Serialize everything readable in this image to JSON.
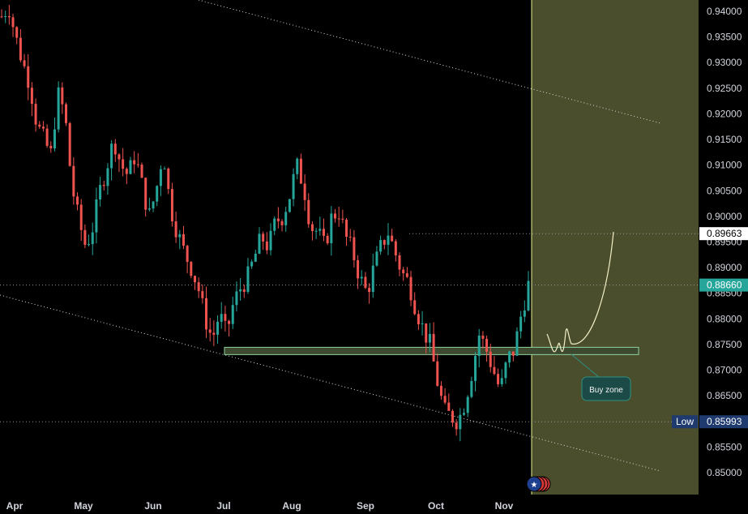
{
  "chart_data": {
    "type": "candlestick",
    "y_axis": {
      "ylim": [
        0.8465,
        0.9415
      ],
      "ticks": [
        "0.94000",
        "0.93500",
        "0.93000",
        "0.92500",
        "0.92000",
        "0.91500",
        "0.91000",
        "0.90500",
        "0.90000",
        "0.89500",
        "0.89000",
        "0.88500",
        "0.88000",
        "0.87500",
        "0.87000",
        "0.86500",
        "0.86000",
        "0.85500",
        "0.85000"
      ],
      "tick_values": [
        0.94,
        0.935,
        0.93,
        0.925,
        0.92,
        0.915,
        0.91,
        0.905,
        0.9,
        0.895,
        0.89,
        0.885,
        0.88,
        0.875,
        0.87,
        0.865,
        0.86,
        0.855,
        0.85
      ]
    },
    "x_axis": {
      "ticks": [
        "Apr",
        "May",
        "Jun",
        "Jul",
        "Aug",
        "Sep",
        "Oct",
        "Nov"
      ]
    },
    "price_labels": [
      {
        "value": 0.89663,
        "text": "0.89663",
        "style": "white"
      },
      {
        "value": 0.8866,
        "text": "0.88660",
        "style": "teal"
      },
      {
        "value": 0.85993,
        "text": "0.85993",
        "style": "navy",
        "tag": "Low"
      }
    ],
    "candles_ohlc_summary": {
      "start_close": 0.939,
      "path": [
        0.939,
        0.941,
        0.935,
        0.93,
        0.926,
        0.918,
        0.915,
        0.912,
        0.924,
        0.92,
        0.906,
        0.899,
        0.894,
        0.898,
        0.905,
        0.91,
        0.915,
        0.91,
        0.908,
        0.912,
        0.906,
        0.9,
        0.905,
        0.913,
        0.902,
        0.897,
        0.893,
        0.89,
        0.886,
        0.88,
        0.876,
        0.881,
        0.877,
        0.883,
        0.886,
        0.888,
        0.892,
        0.896,
        0.894,
        0.899,
        0.9,
        0.904,
        0.91,
        0.906,
        0.898,
        0.897,
        0.894,
        0.9,
        0.901,
        0.896,
        0.893,
        0.888,
        0.885,
        0.89,
        0.894,
        0.897,
        0.893,
        0.889,
        0.887,
        0.882,
        0.878,
        0.875,
        0.868,
        0.862,
        0.861,
        0.86,
        0.864,
        0.87,
        0.877,
        0.874,
        0.87,
        0.866,
        0.872,
        0.874,
        0.881,
        0.8866
      ]
    },
    "buy_zone": {
      "y_low": 0.8735,
      "y_high": 0.8743,
      "label": "Buy zone"
    },
    "channel": {
      "upper": [
        [
          0.9405,
          "start"
        ],
        [
          0.918,
          "end"
        ]
      ],
      "lower": [
        [
          0.884,
          "start"
        ],
        [
          0.8505,
          "end"
        ]
      ]
    },
    "projection_end": 0.8968,
    "colors": {
      "up": "#26a69a",
      "down": "#ef5350",
      "zone_fill": "#3d4a2f",
      "zone_border": "#8fd19e",
      "future_bg": "#4a4e2c",
      "teal": "#26a69a",
      "navy": "#1e3a6e"
    },
    "flag": "australia-flag-icon"
  }
}
